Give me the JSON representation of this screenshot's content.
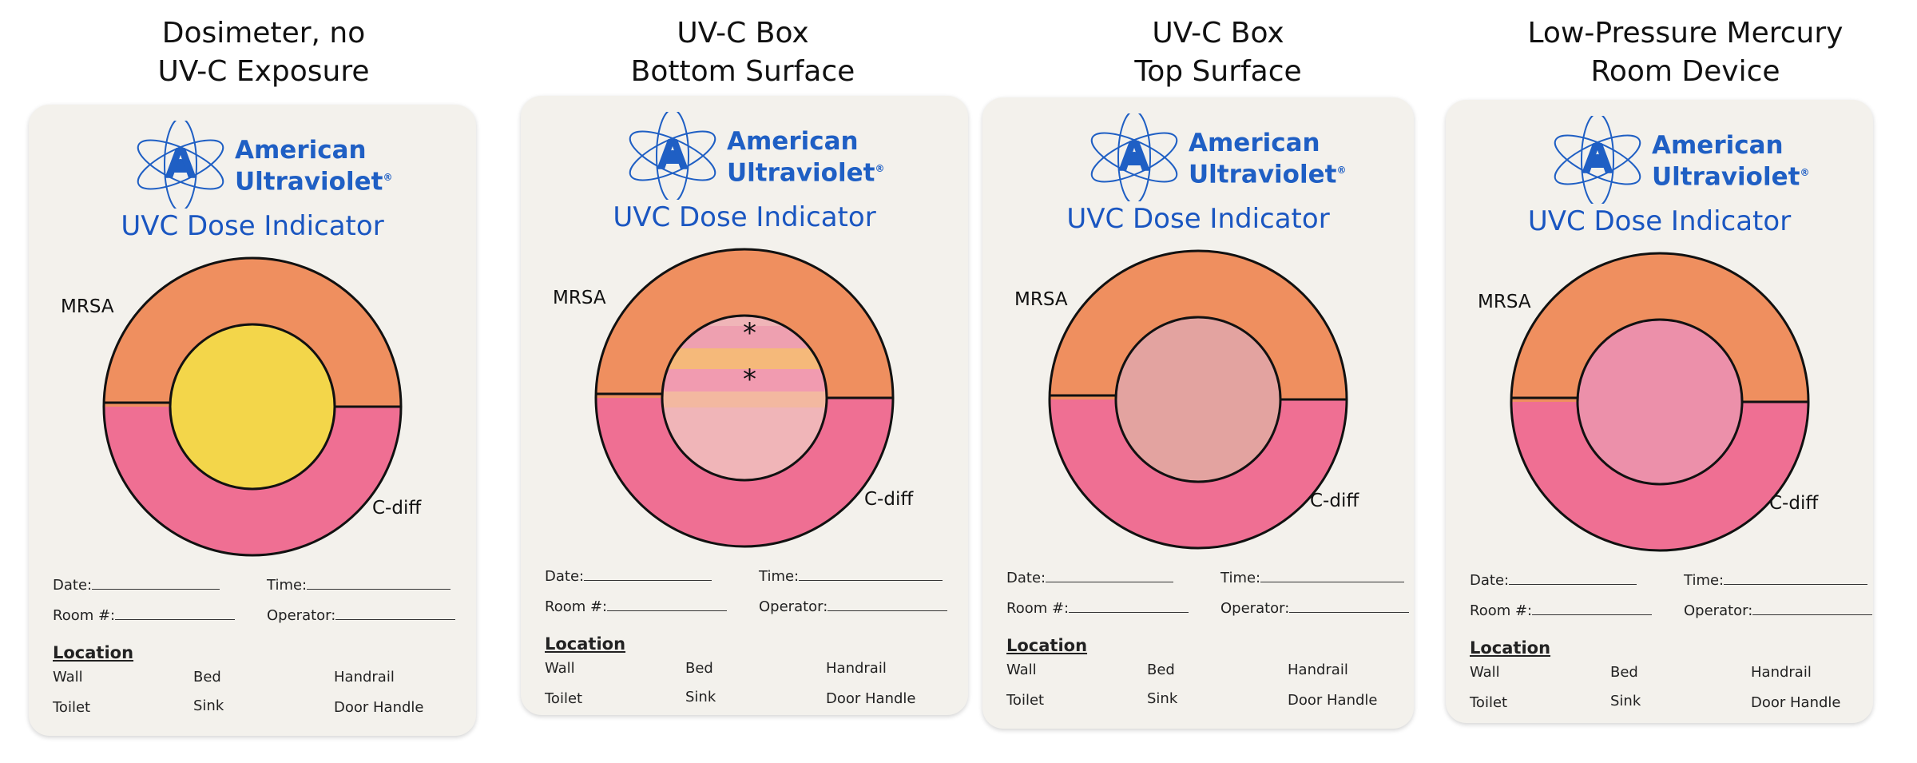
{
  "panels": [
    {
      "caption_line1": "Dosimeter, no",
      "caption_line2": "UV-C Exposure",
      "inner_state": "yellow",
      "inner_color": "#f3d64a",
      "asterisks": []
    },
    {
      "caption_line1": "UV-C Box",
      "caption_line2": "Bottom Surface",
      "inner_state": "banded",
      "inner_color": "#f0b5b8",
      "asterisks": [
        "*",
        "*"
      ]
    },
    {
      "caption_line1": "UV-C Box",
      "caption_line2": "Top Surface",
      "inner_state": "pink",
      "inner_color": "#e3a3a0",
      "asterisks": []
    },
    {
      "caption_line1": "Low-Pressure Mercury",
      "caption_line2": "Room Device",
      "inner_state": "pink",
      "inner_color": "#ec90aa",
      "asterisks": []
    }
  ],
  "card": {
    "brand_line1": "American",
    "brand_line2": "Ultraviolet",
    "trademark": "®",
    "title": "UVC Dose Indicator",
    "label_top": "MRSA",
    "label_bottom": "C-diff",
    "date_label": "Date:",
    "time_label": "Time:",
    "room_label": "Room #:",
    "operator_label": "Operator:",
    "location_title": "Location",
    "loc_wall": "Wall",
    "loc_bed": "Bed",
    "loc_handrail": "Handrail",
    "loc_toilet": "Toilet",
    "loc_sink": "Sink",
    "loc_door": "Door Handle"
  },
  "colors": {
    "brand_blue": "#1f5fc4",
    "ring_top_orange": "#ef8f5f",
    "ring_bottom_pink": "#ef6f93",
    "card_bg": "#f3f1ec"
  }
}
